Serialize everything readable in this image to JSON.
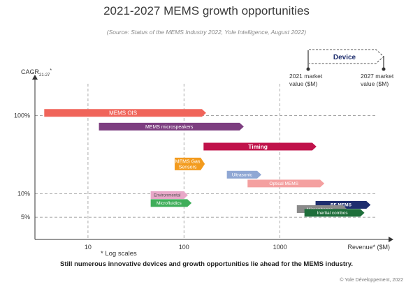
{
  "title": "2021-2027 MEMS growth opportunities",
  "source": "(Source:  Status of the MEMS Industry 2022, Yole Intelligence, August 2022)",
  "log_note": "* Log scales",
  "footnote": "Still numerous innovative devices and growth opportunities lie ahead for the MEMS industry.",
  "copyright": "© Yole Développement, 2022",
  "legend": {
    "device": "Device",
    "start": "2021 market value ($M)",
    "end": "2027 market value ($M)"
  },
  "chart_data": {
    "type": "bar",
    "scale": "log-log",
    "ylabel": "CAGR21-27*",
    "ylabel_main": "CAGR",
    "ylabel_sub": "21-27",
    "ylabel_star": "*",
    "xlabel": "Revenue* ($M)",
    "xticks": [
      10,
      100,
      1000
    ],
    "xtick_labels": [
      "10",
      "100",
      "1000"
    ],
    "yticks": [
      5,
      10,
      100
    ],
    "ytick_labels": [
      "5%",
      "10%",
      "100%"
    ],
    "xlim": [
      2.8,
      14000
    ],
    "ylim": [
      2.6,
      300
    ],
    "grid": true,
    "series": [
      {
        "name": "MEMS OIS",
        "x": [
          3.5,
          170
        ],
        "cagr": 108,
        "color": "#f0645a",
        "text_color": "#ffffff",
        "font": 8,
        "bold": false
      },
      {
        "name": "MEMS microspeakers",
        "x": [
          13,
          420
        ],
        "cagr": 72,
        "color": "#7d3e80",
        "text_color": "#ffffff",
        "font": 7,
        "bold": false
      },
      {
        "name": "Timing",
        "x": [
          160,
          2400
        ],
        "cagr": 40,
        "color": "#c0124a",
        "text_color": "#ffffff",
        "font": 8.5,
        "bold": true
      },
      {
        "name": "MEMS Gas\nSensors",
        "x": [
          80,
          165
        ],
        "cagr": 24,
        "color": "#f39b1e",
        "text_color": "#ffffff",
        "font": 7,
        "bold": false,
        "height": 18
      },
      {
        "name": "Ultrasonic",
        "x": [
          280,
          640
        ],
        "cagr": 17.5,
        "color": "#8fa7d4",
        "text_color": "#ffffff",
        "font": 6.5,
        "bold": false
      },
      {
        "name": "Optical MEMS",
        "x": [
          460,
          2900
        ],
        "cagr": 13.5,
        "color": "#f4a0a0",
        "text_color": "#ffffff",
        "font": 6.5,
        "bold": false
      },
      {
        "name": "Environmental",
        "x": [
          45,
          110
        ],
        "cagr": 9.6,
        "color": "#e8a8c8",
        "text_color": "#555555",
        "font": 6,
        "bold": false
      },
      {
        "name": "Microfluidics",
        "x": [
          45,
          120
        ],
        "cagr": 7.6,
        "color": "#3fae5a",
        "text_color": "#ffffff",
        "font": 6.5,
        "bold": false
      },
      {
        "name": "RF MEMS",
        "x": [
          2350,
          8800
        ],
        "cagr": 7.2,
        "color": "#1e2e6e",
        "text_color": "#ffffff",
        "font": 6.5,
        "bold": true
      },
      {
        "name": "Microphones",
        "x": [
          1500,
          5000
        ],
        "cagr": 6.35,
        "color": "#8a8a8a",
        "text_color": "#ffffff",
        "font": 6.5,
        "bold": false
      },
      {
        "name": "Inertial combos",
        "x": [
          1800,
          7600
        ],
        "cagr": 5.7,
        "color": "#1e6e3a",
        "text_color": "#ffffff",
        "font": 6.5,
        "bold": false
      }
    ]
  }
}
